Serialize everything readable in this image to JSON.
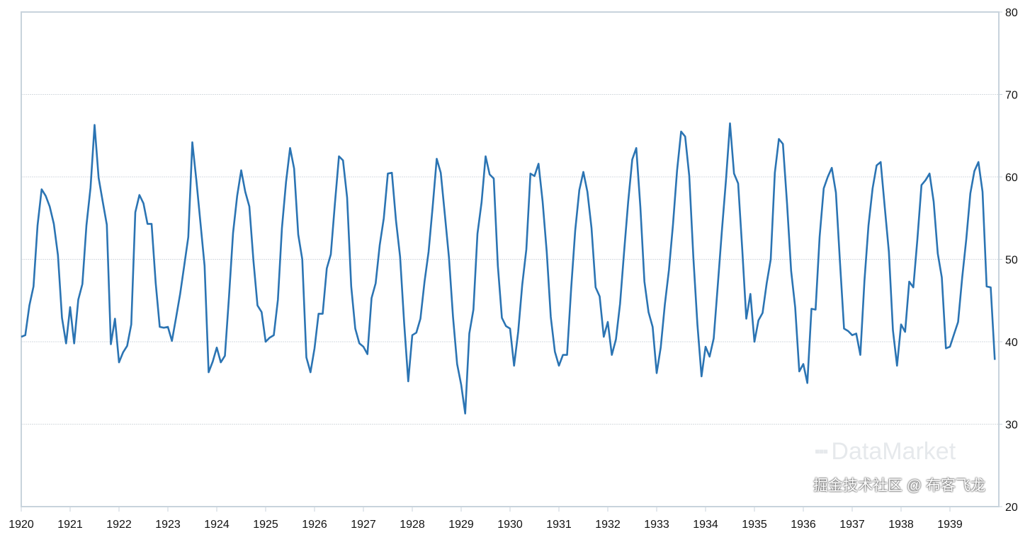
{
  "chart_data": {
    "type": "line",
    "title": "",
    "xlabel": "",
    "ylabel": "",
    "x_start_year": 1920,
    "frequency": "monthly",
    "xlim": [
      1920,
      1940
    ],
    "ylim": [
      20,
      80
    ],
    "x_ticks": [
      "1920",
      "1921",
      "1922",
      "1923",
      "1924",
      "1925",
      "1926",
      "1927",
      "1928",
      "1929",
      "1930",
      "1931",
      "1932",
      "1933",
      "1934",
      "1935",
      "1936",
      "1937",
      "1938",
      "1939"
    ],
    "y_ticks": [
      "20",
      "30",
      "40",
      "50",
      "60",
      "70",
      "80"
    ],
    "y_axis_side": "right",
    "grid": true,
    "legend": "none",
    "line_color": "#2b74b3",
    "series": [
      {
        "values": [
          40.6,
          40.8,
          44.4,
          46.7,
          54.1,
          58.5,
          57.7,
          56.4,
          54.3,
          50.5,
          42.9,
          39.8,
          44.2,
          39.8,
          45.1,
          47.0,
          54.1,
          58.7,
          66.3,
          59.9,
          57.0,
          54.2,
          39.7,
          42.8,
          37.5,
          38.7,
          39.5,
          42.1,
          55.7,
          57.8,
          56.8,
          54.3,
          54.3,
          47.1,
          41.8,
          41.7,
          41.8,
          40.1,
          42.9,
          45.8,
          49.2,
          52.7,
          64.2,
          59.6,
          54.4,
          49.2,
          36.3,
          37.6,
          39.3,
          37.5,
          38.3,
          45.5,
          53.2,
          57.7,
          60.8,
          58.2,
          56.4,
          49.8,
          44.4,
          43.6,
          40.0,
          40.5,
          40.8,
          45.1,
          53.8,
          59.4,
          63.5,
          61.0,
          53.0,
          50.0,
          38.1,
          36.3,
          39.2,
          43.4,
          43.4,
          48.9,
          50.6,
          56.8,
          62.5,
          62.0,
          57.5,
          46.7,
          41.6,
          39.8,
          39.4,
          38.5,
          45.3,
          47.1,
          51.7,
          55.0,
          60.4,
          60.5,
          54.7,
          50.3,
          42.3,
          35.2,
          40.8,
          41.1,
          42.8,
          47.3,
          50.9,
          56.4,
          62.2,
          60.5,
          55.4,
          50.2,
          43.0,
          37.3,
          34.8,
          31.3,
          41.0,
          43.9,
          53.1,
          56.9,
          62.5,
          60.3,
          59.8,
          49.2,
          42.9,
          41.9,
          41.6,
          37.1,
          41.2,
          46.9,
          51.2,
          60.4,
          60.1,
          61.6,
          57.0,
          50.9,
          43.0,
          38.8,
          37.1,
          38.4,
          38.4,
          46.5,
          53.5,
          58.4,
          60.6,
          58.2,
          53.8,
          46.6,
          45.5,
          40.6,
          42.4,
          38.4,
          40.3,
          44.6,
          50.9,
          57.0,
          62.1,
          63.5,
          56.3,
          47.3,
          43.6,
          41.8,
          36.2,
          39.3,
          44.5,
          48.7,
          54.2,
          60.8,
          65.5,
          64.9,
          60.1,
          50.2,
          42.1,
          35.8,
          39.4,
          38.2,
          40.4,
          46.9,
          53.4,
          59.6,
          66.5,
          60.4,
          59.2,
          51.2,
          42.8,
          45.8,
          40.0,
          42.6,
          43.5,
          47.1,
          50.0,
          60.5,
          64.6,
          64.0,
          56.8,
          48.6,
          44.2,
          36.4,
          37.3,
          35.0,
          44.0,
          43.9,
          52.7,
          58.6,
          60.0,
          61.1,
          58.1,
          49.6,
          41.6,
          41.3,
          40.8,
          41.0,
          38.4,
          47.4,
          54.1,
          58.6,
          61.4,
          61.8,
          56.3,
          50.9,
          41.4,
          37.1,
          42.1,
          41.2,
          47.3,
          46.6,
          52.4,
          59.0,
          59.6,
          60.4,
          57.0,
          50.7,
          47.8,
          39.2,
          39.4,
          40.9,
          42.4,
          47.8,
          52.4,
          58.0,
          60.7,
          61.8,
          58.2,
          46.7,
          46.6,
          37.8
        ]
      }
    ]
  },
  "watermarks": {
    "logo": "DataMarket",
    "credit": "掘金技术社区 @ 布客飞龙"
  }
}
